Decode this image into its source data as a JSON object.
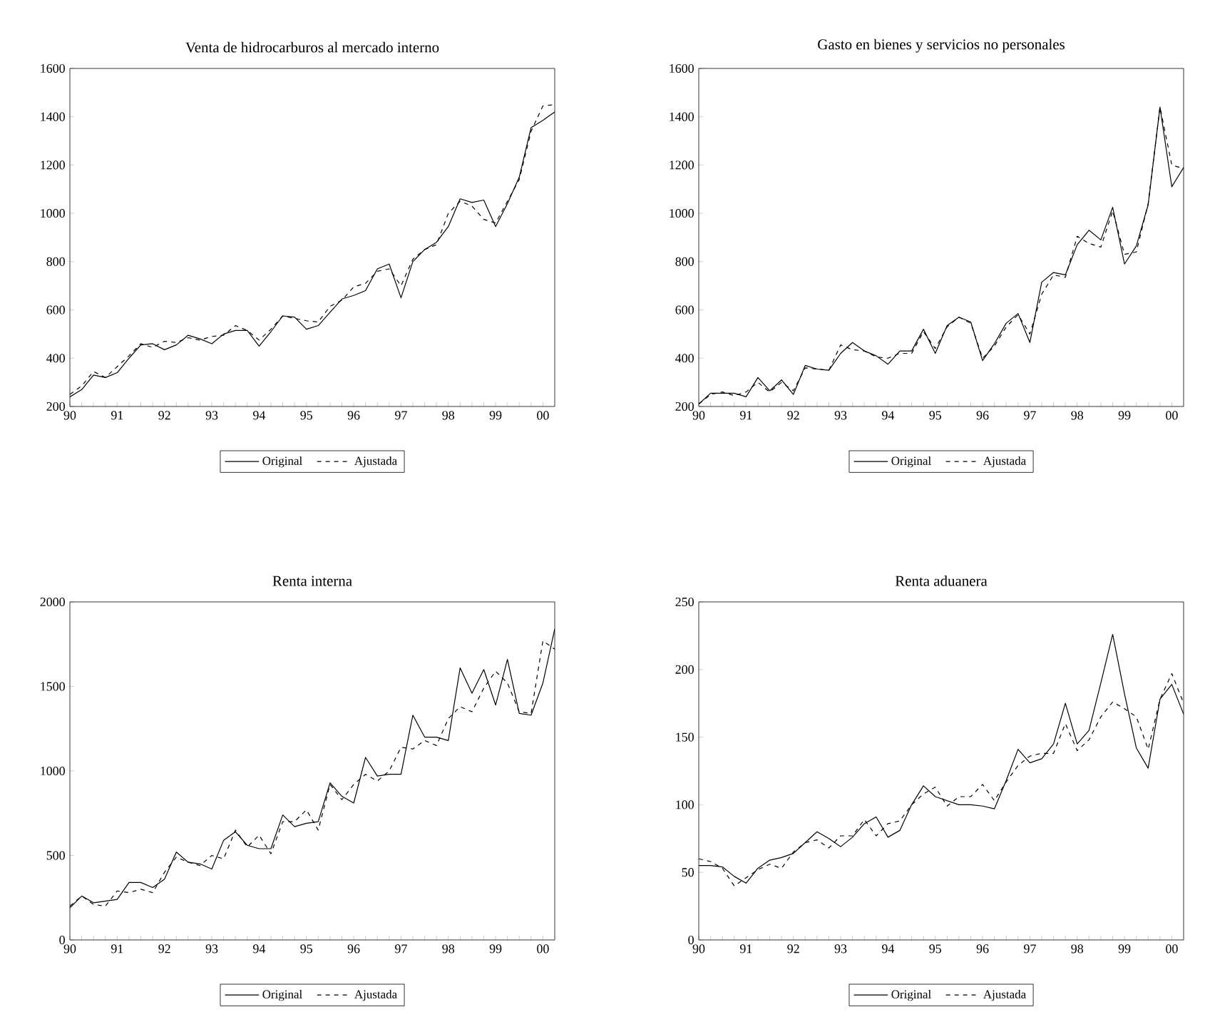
{
  "chart_data": [
    {
      "type": "line",
      "title": "Venta de hidrocarburos al mercado interno",
      "legend": "bottom",
      "x": [
        "1990-01",
        "1990-04",
        "1990-07",
        "1990-10",
        "1991-01",
        "1991-04",
        "1991-07",
        "1991-10",
        "1992-01",
        "1992-04",
        "1992-07",
        "1992-10",
        "1993-01",
        "1993-04",
        "1993-07",
        "1993-10",
        "1994-01",
        "1994-04",
        "1994-07",
        "1994-10",
        "1995-01",
        "1995-04",
        "1995-07",
        "1995-10",
        "1996-01",
        "1996-04",
        "1996-07",
        "1996-10",
        "1997-01",
        "1997-04",
        "1997-07",
        "1997-10",
        "1998-01",
        "1998-04",
        "1998-07",
        "1998-10",
        "1999-01",
        "1999-04",
        "1999-07",
        "1999-10",
        "2000-01",
        "2000-04"
      ],
      "xlim": [
        "1990-01",
        "2000-04"
      ],
      "xticks": [
        {
          "value": "1990",
          "label": "90"
        },
        {
          "value": "1991",
          "label": "91"
        },
        {
          "value": "1992",
          "label": "92"
        },
        {
          "value": "1993",
          "label": "93"
        },
        {
          "value": "1994",
          "label": "94"
        },
        {
          "value": "1995",
          "label": "95"
        },
        {
          "value": "1996",
          "label": "96"
        },
        {
          "value": "1997",
          "label": "97"
        },
        {
          "value": "1998",
          "label": "98"
        },
        {
          "value": "1999",
          "label": "99"
        },
        {
          "value": "2000",
          "label": "00"
        }
      ],
      "ylim": [
        200,
        1600
      ],
      "yticks": [
        200,
        400,
        600,
        800,
        1000,
        1200,
        1400,
        1600
      ],
      "series": [
        {
          "name": "Original",
          "color": "#000000",
          "line_style": "solid",
          "values": [
            240,
            270,
            330,
            320,
            340,
            400,
            455,
            460,
            435,
            455,
            495,
            480,
            460,
            500,
            515,
            515,
            450,
            510,
            575,
            570,
            520,
            535,
            590,
            645,
            660,
            680,
            770,
            790,
            650,
            800,
            850,
            880,
            945,
            1060,
            1045,
            1055,
            945,
            1040,
            1150,
            1355,
            1385,
            1420
          ]
        },
        {
          "name": "Ajustada",
          "color": "#000000",
          "line_style": "dashed",
          "values": [
            250,
            285,
            345,
            320,
            365,
            410,
            460,
            445,
            470,
            465,
            485,
            475,
            490,
            495,
            535,
            515,
            475,
            520,
            575,
            565,
            555,
            550,
            615,
            640,
            695,
            710,
            760,
            770,
            700,
            810,
            850,
            870,
            1000,
            1050,
            1030,
            975,
            960,
            1050,
            1140,
            1340,
            1445,
            1450
          ]
        }
      ]
    },
    {
      "type": "line",
      "title": "Gasto en bienes y servicios no personales",
      "legend": "bottom",
      "x": [
        "1990-01",
        "1990-04",
        "1990-07",
        "1990-10",
        "1991-01",
        "1991-04",
        "1991-07",
        "1991-10",
        "1992-01",
        "1992-04",
        "1992-07",
        "1992-10",
        "1993-01",
        "1993-04",
        "1993-07",
        "1993-10",
        "1994-01",
        "1994-04",
        "1994-07",
        "1994-10",
        "1995-01",
        "1995-04",
        "1995-07",
        "1995-10",
        "1996-01",
        "1996-04",
        "1996-07",
        "1996-10",
        "1997-01",
        "1997-04",
        "1997-07",
        "1997-10",
        "1998-01",
        "1998-04",
        "1998-07",
        "1998-10",
        "1999-01",
        "1999-04",
        "1999-07",
        "1999-10",
        "2000-01",
        "2000-04"
      ],
      "xlim": [
        "1990-01",
        "2000-04"
      ],
      "xticks": [
        {
          "value": "1990",
          "label": "90"
        },
        {
          "value": "1991",
          "label": "91"
        },
        {
          "value": "1992",
          "label": "92"
        },
        {
          "value": "1993",
          "label": "93"
        },
        {
          "value": "1994",
          "label": "94"
        },
        {
          "value": "1995",
          "label": "95"
        },
        {
          "value": "1996",
          "label": "96"
        },
        {
          "value": "1997",
          "label": "97"
        },
        {
          "value": "1998",
          "label": "98"
        },
        {
          "value": "1999",
          "label": "99"
        },
        {
          "value": "2000",
          "label": "00"
        }
      ],
      "ylim": [
        200,
        1600
      ],
      "yticks": [
        200,
        400,
        600,
        800,
        1000,
        1200,
        1400,
        1600
      ],
      "series": [
        {
          "name": "Original",
          "color": "#000000",
          "line_style": "solid",
          "values": [
            210,
            255,
            255,
            255,
            240,
            320,
            265,
            310,
            250,
            370,
            355,
            350,
            420,
            465,
            430,
            410,
            375,
            430,
            430,
            520,
            420,
            535,
            570,
            550,
            390,
            460,
            545,
            585,
            465,
            715,
            755,
            745,
            870,
            930,
            890,
            1025,
            790,
            865,
            1035,
            1440,
            1110,
            1190
          ]
        },
        {
          "name": "Ajustada",
          "color": "#000000",
          "line_style": "dashed",
          "values": [
            210,
            250,
            260,
            245,
            260,
            300,
            260,
            300,
            265,
            360,
            355,
            350,
            455,
            435,
            430,
            405,
            400,
            420,
            420,
            510,
            440,
            530,
            570,
            545,
            400,
            450,
            530,
            580,
            500,
            665,
            745,
            735,
            905,
            875,
            860,
            1010,
            830,
            840,
            1040,
            1440,
            1200,
            1185
          ]
        }
      ]
    },
    {
      "type": "line",
      "title": "Renta interna",
      "legend": "bottom",
      "x": [
        "1990-01",
        "1990-04",
        "1990-07",
        "1990-10",
        "1991-01",
        "1991-04",
        "1991-07",
        "1991-10",
        "1992-01",
        "1992-04",
        "1992-07",
        "1992-10",
        "1993-01",
        "1993-04",
        "1993-07",
        "1993-10",
        "1994-01",
        "1994-04",
        "1994-07",
        "1994-10",
        "1995-01",
        "1995-04",
        "1995-07",
        "1995-10",
        "1996-01",
        "1996-04",
        "1996-07",
        "1996-10",
        "1997-01",
        "1997-04",
        "1997-07",
        "1997-10",
        "1998-01",
        "1998-04",
        "1998-07",
        "1998-10",
        "1999-01",
        "1999-04",
        "1999-07",
        "1999-10",
        "2000-01",
        "2000-04"
      ],
      "xlim": [
        "1990-01",
        "2000-04"
      ],
      "xticks": [
        {
          "value": "1990",
          "label": "90"
        },
        {
          "value": "1991",
          "label": "91"
        },
        {
          "value": "1992",
          "label": "92"
        },
        {
          "value": "1993",
          "label": "93"
        },
        {
          "value": "1994",
          "label": "94"
        },
        {
          "value": "1995",
          "label": "95"
        },
        {
          "value": "1996",
          "label": "96"
        },
        {
          "value": "1997",
          "label": "97"
        },
        {
          "value": "1998",
          "label": "98"
        },
        {
          "value": "1999",
          "label": "99"
        },
        {
          "value": "2000",
          "label": "00"
        }
      ],
      "ylim": [
        0,
        2000
      ],
      "yticks": [
        0,
        500,
        1000,
        1500,
        2000
      ],
      "series": [
        {
          "name": "Original",
          "color": "#000000",
          "line_style": "solid",
          "values": [
            190,
            260,
            220,
            230,
            240,
            340,
            340,
            310,
            360,
            520,
            460,
            450,
            420,
            590,
            640,
            560,
            540,
            540,
            740,
            670,
            690,
            700,
            930,
            850,
            810,
            1080,
            970,
            980,
            980,
            1330,
            1200,
            1200,
            1180,
            1610,
            1460,
            1600,
            1390,
            1660,
            1340,
            1330,
            1520,
            1840
          ]
        },
        {
          "name": "Ajustada",
          "color": "#000000",
          "line_style": "dashed",
          "values": [
            200,
            260,
            210,
            200,
            290,
            280,
            300,
            280,
            400,
            490,
            460,
            440,
            500,
            480,
            650,
            550,
            620,
            510,
            700,
            700,
            770,
            650,
            920,
            830,
            920,
            980,
            940,
            1000,
            1140,
            1130,
            1180,
            1150,
            1310,
            1380,
            1350,
            1490,
            1590,
            1520,
            1350,
            1340,
            1770,
            1720
          ]
        }
      ]
    },
    {
      "type": "line",
      "title": "Renta aduanera",
      "legend": "bottom",
      "x": [
        "1990-01",
        "1990-04",
        "1990-07",
        "1990-10",
        "1991-01",
        "1991-04",
        "1991-07",
        "1991-10",
        "1992-01",
        "1992-04",
        "1992-07",
        "1992-10",
        "1993-01",
        "1993-04",
        "1993-07",
        "1993-10",
        "1994-01",
        "1994-04",
        "1994-07",
        "1994-10",
        "1995-01",
        "1995-04",
        "1995-07",
        "1995-10",
        "1996-01",
        "1996-04",
        "1996-07",
        "1996-10",
        "1997-01",
        "1997-04",
        "1997-07",
        "1997-10",
        "1998-01",
        "1998-04",
        "1998-07",
        "1998-10",
        "1999-01",
        "1999-04",
        "1999-07",
        "1999-10",
        "2000-01",
        "2000-04"
      ],
      "xlim": [
        "1990-01",
        "2000-04"
      ],
      "xticks": [
        {
          "value": "1990",
          "label": "90"
        },
        {
          "value": "1991",
          "label": "91"
        },
        {
          "value": "1992",
          "label": "92"
        },
        {
          "value": "1993",
          "label": "93"
        },
        {
          "value": "1994",
          "label": "94"
        },
        {
          "value": "1995",
          "label": "95"
        },
        {
          "value": "1996",
          "label": "96"
        },
        {
          "value": "1997",
          "label": "97"
        },
        {
          "value": "1998",
          "label": "98"
        },
        {
          "value": "1999",
          "label": "99"
        },
        {
          "value": "2000",
          "label": "00"
        }
      ],
      "ylim": [
        0,
        250
      ],
      "yticks": [
        0,
        50,
        100,
        150,
        200,
        250
      ],
      "series": [
        {
          "name": "Original",
          "color": "#000000",
          "line_style": "solid",
          "values": [
            55,
            55,
            54,
            47,
            42,
            53,
            59,
            61,
            64,
            72,
            80,
            75,
            69,
            76,
            86,
            91,
            76,
            81,
            100,
            114,
            106,
            103,
            100,
            100,
            99,
            97,
            118,
            141,
            131,
            134,
            145,
            175,
            145,
            155,
            190,
            226,
            182,
            142,
            127,
            178,
            189,
            167
          ]
        },
        {
          "name": "Ajustada",
          "color": "#000000",
          "line_style": "dashed",
          "values": [
            60,
            58,
            53,
            40,
            46,
            52,
            56,
            53,
            65,
            72,
            74,
            68,
            77,
            77,
            89,
            77,
            86,
            88,
            100,
            108,
            113,
            99,
            106,
            106,
            115,
            103,
            117,
            129,
            136,
            138,
            138,
            160,
            140,
            148,
            165,
            176,
            171,
            165,
            141,
            178,
            197,
            175
          ]
        }
      ]
    }
  ]
}
